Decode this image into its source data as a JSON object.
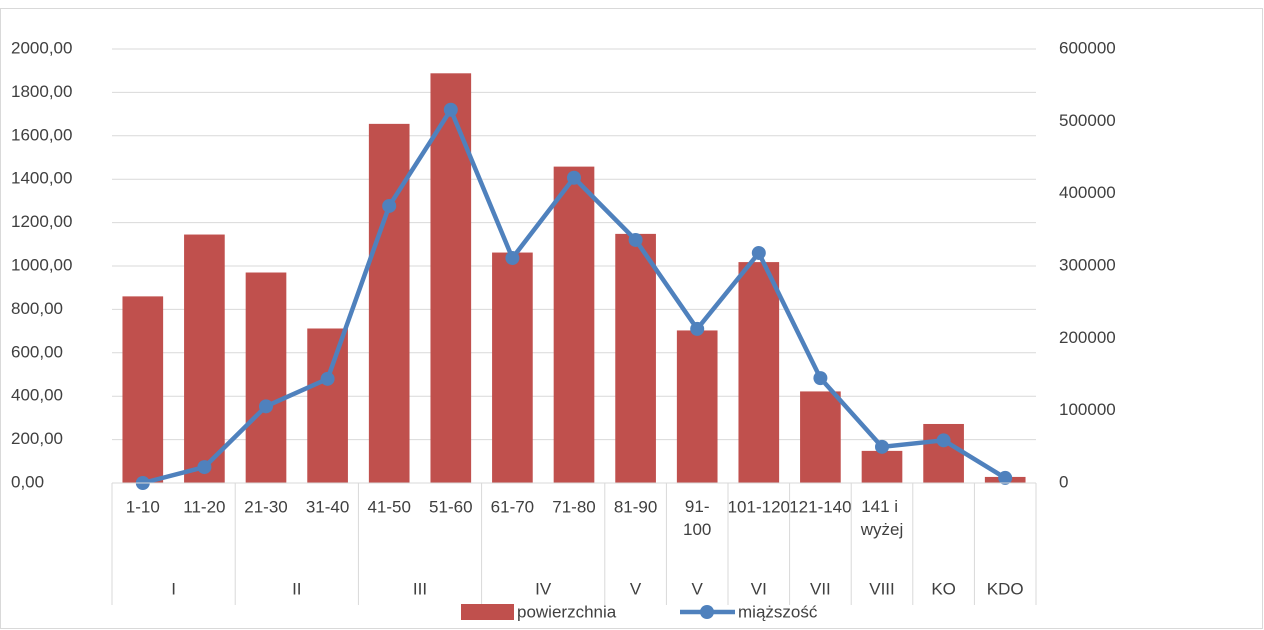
{
  "chart_data": {
    "type": "bar_line",
    "categories": [
      "1-10",
      "11-20",
      "21-30",
      "31-40",
      "41-50",
      "51-60",
      "61-70",
      "71-80",
      "81-90",
      "91-100",
      "101-120",
      "121-140",
      "141 i wyżej",
      null,
      null
    ],
    "groups": [
      {
        "name": "I",
        "span": 2
      },
      {
        "name": "II",
        "span": 2
      },
      {
        "name": "III",
        "span": 2
      },
      {
        "name": "IV",
        "span": 2
      },
      {
        "name": "V",
        "span": 1
      },
      {
        "name": "V",
        "span": 1
      },
      {
        "name": "VI",
        "span": 1
      },
      {
        "name": "VII",
        "span": 1
      },
      {
        "name": "VIII",
        "span": 1
      },
      {
        "name": "KO",
        "span": 1
      },
      {
        "name": "KDO",
        "span": 1
      }
    ],
    "series": [
      {
        "name": "powierzchnia",
        "type": "bar",
        "color": "#c0504d",
        "values": [
          860,
          1145,
          970,
          712,
          1655,
          1888,
          1062,
          1458,
          1148,
          703,
          1018,
          422,
          148,
          272,
          28
        ]
      },
      {
        "name": "miąższość",
        "type": "line",
        "axis": "y2",
        "color": "#4f81bd",
        "values": [
          0,
          22000,
          106000,
          144000,
          383000,
          516000,
          311000,
          422000,
          336000,
          213000,
          318000,
          145000,
          50000,
          59000,
          7000
        ]
      }
    ],
    "ylim": [
      0,
      2000
    ],
    "yticks": [
      {
        "value": 0,
        "label": "0,00"
      },
      {
        "value": 200,
        "label": "200,00"
      },
      {
        "value": 400,
        "label": "400,00"
      },
      {
        "value": 600,
        "label": "600,00"
      },
      {
        "value": 800,
        "label": "800,00"
      },
      {
        "value": 1000,
        "label": "1000,00"
      },
      {
        "value": 1200,
        "label": "1200,00"
      },
      {
        "value": 1400,
        "label": "1400,00"
      },
      {
        "value": 1600,
        "label": "1600,00"
      },
      {
        "value": 1800,
        "label": "1800,00"
      },
      {
        "value": 2000,
        "label": "2000,00"
      }
    ],
    "y2lim": [
      0,
      600000
    ],
    "y2ticks": [
      0,
      100000,
      200000,
      300000,
      400000,
      500000,
      600000
    ],
    "grid": true,
    "legend": "bottom"
  }
}
